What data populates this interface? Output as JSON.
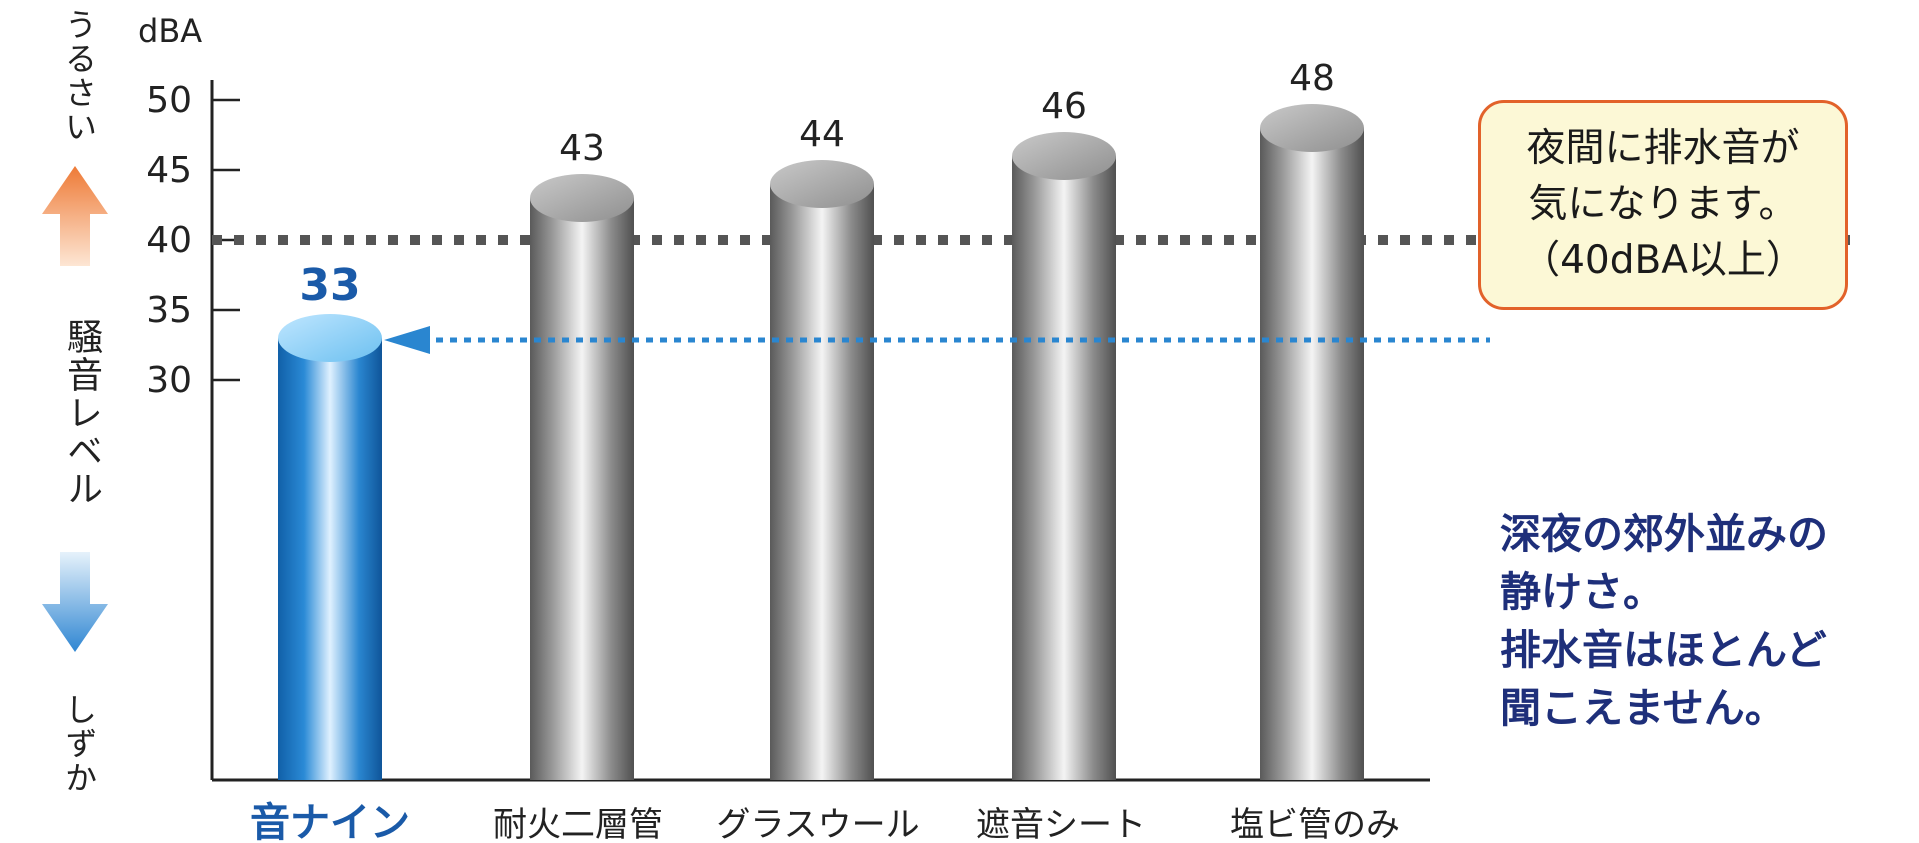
{
  "chart_data": {
    "type": "bar",
    "unit": "dBA",
    "categories": [
      "音ナイン",
      "耐火二層管",
      "グラスウール",
      "遮音シート",
      "塩ビ管のみ"
    ],
    "values": [
      33,
      43,
      44,
      46,
      48
    ],
    "yticks": [
      30,
      35,
      40,
      45,
      50
    ],
    "ylim": [
      25,
      50
    ],
    "grid": false,
    "highlight_category": "音ナイン",
    "colors": {
      "highlight": "#1a7fd0",
      "others": "#8a8a8a",
      "loud_arrow": "#f08a4b",
      "quiet_arrow": "#3f8fd3"
    },
    "threshold": {
      "value": 40,
      "style": "dotted",
      "color": "#555555"
    },
    "ylabel": "騒音レベル",
    "y_top_label": "うるさい",
    "y_bottom_label": "しずか",
    "annotations": {
      "threshold_note": [
        "夜間に排水音が",
        "気になります。",
        "（40dBA以上）"
      ],
      "highlight_note": [
        "深夜の郊外並みの",
        "静けさ。",
        "排水音はほとんど",
        "聞こえません。"
      ]
    }
  }
}
